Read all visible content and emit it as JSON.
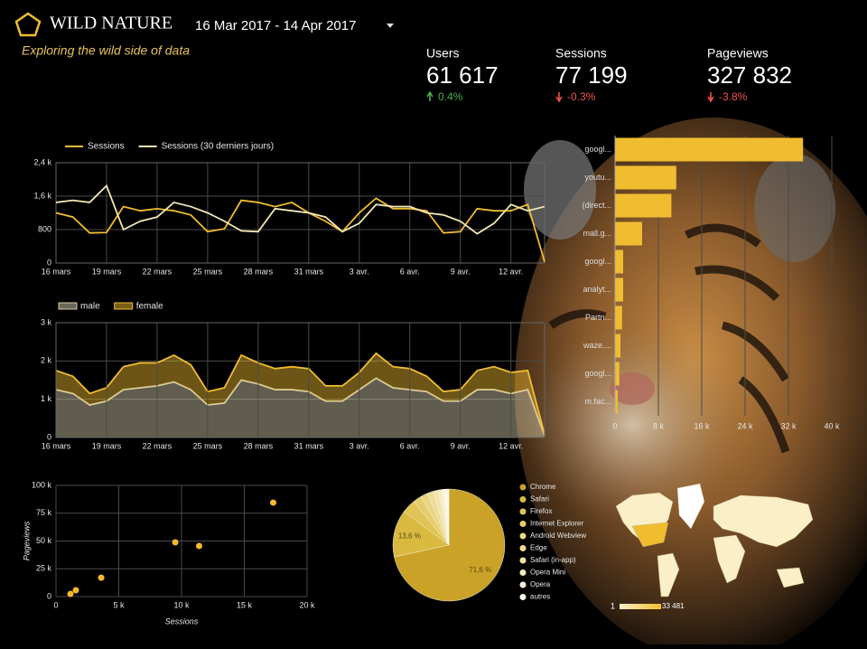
{
  "header": {
    "title": "WILD NATURE",
    "date_range": "16 Mar 2017 - 14 Apr 2017",
    "subtitle": "Exploring the wild side of data"
  },
  "kpis": [
    {
      "label": "Users",
      "value": "61 617",
      "change": "0.4%",
      "color": "#4caf50"
    },
    {
      "label": "Sessions",
      "value": "77 199",
      "change": "-0.3%",
      "color": "#ef5350"
    },
    {
      "label": "Pageviews",
      "value": "327 832",
      "change": "-3.8%",
      "color": "#ef5350"
    }
  ],
  "chart_data": [
    {
      "type": "line",
      "categories": [
        "16 mars",
        null,
        null,
        "19 mars",
        null,
        null,
        "22 mars",
        null,
        null,
        "25 mars",
        null,
        null,
        "28 mars",
        null,
        null,
        "31 mars",
        null,
        null,
        "3 avr.",
        null,
        null,
        "6 avr.",
        null,
        null,
        "9 avr.",
        null,
        null,
        "12 avr.",
        null,
        null
      ],
      "ylim": [
        0,
        2400
      ],
      "yticks": [
        0,
        800,
        {
          "value": 1600,
          "label": "1,6 k"
        },
        {
          "value": 2400,
          "label": "2,4 k"
        }
      ],
      "grid": true,
      "series": [
        {
          "name": "Sessions",
          "color": "#f0bd30",
          "values": [
            1200,
            1100,
            720,
            730,
            1350,
            1250,
            1300,
            1250,
            1150,
            750,
            820,
            1500,
            1450,
            1350,
            1450,
            1200,
            1000,
            750,
            1200,
            1550,
            1300,
            1300,
            1250,
            720,
            750,
            1300,
            1250,
            1250,
            1400,
            30
          ]
        },
        {
          "name": "Sessions (30 derniers jours)",
          "color": "#f3e7b3",
          "values": [
            1450,
            1500,
            1450,
            1850,
            800,
            1000,
            1100,
            1450,
            1350,
            1200,
            1000,
            770,
            750,
            1300,
            1250,
            1200,
            1100,
            750,
            950,
            1400,
            1350,
            1350,
            1200,
            1150,
            1000,
            700,
            950,
            1400,
            1250,
            1350
          ]
        }
      ]
    },
    {
      "type": "area",
      "stacked": true,
      "categories": [
        "16 mars",
        null,
        null,
        "19 mars",
        null,
        null,
        "22 mars",
        null,
        null,
        "25 mars",
        null,
        null,
        "28 mars",
        null,
        null,
        "31 mars",
        null,
        null,
        "3 avr.",
        null,
        null,
        "6 avr.",
        null,
        null,
        "9 avr.",
        null,
        null,
        "12 avr.",
        null,
        null
      ],
      "ylim": [
        0,
        3000
      ],
      "yticks": [
        0,
        {
          "value": 1000,
          "label": "1 k"
        },
        {
          "value": 2000,
          "label": "2 k"
        },
        {
          "value": 3000,
          "label": "3 k"
        }
      ],
      "grid": true,
      "series": [
        {
          "name": "male",
          "color": "#d8cfae",
          "values": [
            1250,
            1150,
            850,
            950,
            1250,
            1300,
            1350,
            1450,
            1250,
            850,
            900,
            1500,
            1400,
            1250,
            1250,
            1200,
            950,
            950,
            1250,
            1550,
            1300,
            1250,
            1200,
            950,
            950,
            1250,
            1250,
            1150,
            1250,
            50
          ]
        },
        {
          "name": "female",
          "color": "#f0bd30",
          "values": [
            500,
            450,
            300,
            350,
            600,
            650,
            600,
            700,
            650,
            350,
            400,
            650,
            550,
            550,
            600,
            600,
            400,
            400,
            450,
            650,
            550,
            550,
            400,
            250,
            300,
            500,
            600,
            550,
            500,
            30
          ]
        }
      ]
    },
    {
      "type": "hbar",
      "categories": [
        "googl...",
        "youtu...",
        "(direct...",
        "mall.g...",
        "googl...",
        "analyt...",
        "Partn...",
        "waze....",
        "googl...",
        "m.fac..."
      ],
      "values": [
        34700,
        11300,
        10400,
        5000,
        1500,
        1500,
        1300,
        1000,
        800,
        500
      ],
      "color": "#f0bd30",
      "xlim": [
        0,
        40000
      ],
      "xticks": [
        0,
        {
          "value": 8000,
          "label": "8 k"
        },
        {
          "value": 16000,
          "label": "16 k"
        },
        {
          "value": 24000,
          "label": "24 k"
        },
        {
          "value": 32000,
          "label": "32 k"
        },
        {
          "value": 40000,
          "label": "40 k"
        }
      ],
      "grid": true
    },
    {
      "type": "scatter",
      "x_label": "Sessions",
      "y_label": "Pageviews",
      "x": [
        1150,
        1580,
        3600,
        9500,
        11400,
        17300
      ],
      "values": [
        2400,
        5700,
        17000,
        48800,
        45500,
        84500
      ],
      "color": "#f5b82e",
      "xlim": [
        0,
        20000
      ],
      "xticks": [
        0,
        {
          "value": 5000,
          "label": "5 k"
        },
        {
          "value": 10000,
          "label": "10 k"
        },
        {
          "value": 15000,
          "label": "15 k"
        },
        {
          "value": 20000,
          "label": "20 k"
        }
      ],
      "ylim": [
        0,
        100000
      ],
      "yticks": [
        0,
        {
          "value": 25000,
          "label": "25 k"
        },
        {
          "value": 50000,
          "label": "50 k"
        },
        {
          "value": 75000,
          "label": "75 k"
        },
        {
          "value": 100000,
          "label": "100 k"
        }
      ],
      "grid": true
    },
    {
      "type": "pie",
      "categories": [
        "Chrome",
        "Safari",
        "Firefox",
        "Internet Explorer",
        "Android Webview",
        "Edge",
        "Safari (in-app)",
        "Opera Mini",
        "Opera",
        "autres"
      ],
      "values": [
        71.6,
        13.6,
        4,
        2.5,
        2,
        1.8,
        1.5,
        1,
        0.8,
        1.2
      ],
      "value_labels": [
        "71,6 %",
        "13,6 %",
        null,
        null,
        null,
        null,
        null,
        null,
        null,
        null
      ],
      "colors": [
        "#c9a227",
        "#d9b940",
        "#e0c455",
        "#e6cd6b",
        "#ead580",
        "#eedc95",
        "#f2e3aa",
        "#f5eabf",
        "#f8f0d4",
        "#fcf8ea"
      ]
    },
    {
      "type": "map",
      "colorscale": [
        1,
        {
          "value": 33481,
          "label": "33 481"
        }
      ],
      "colors": [
        "#fbefc8",
        "#f0bd30"
      ]
    }
  ]
}
